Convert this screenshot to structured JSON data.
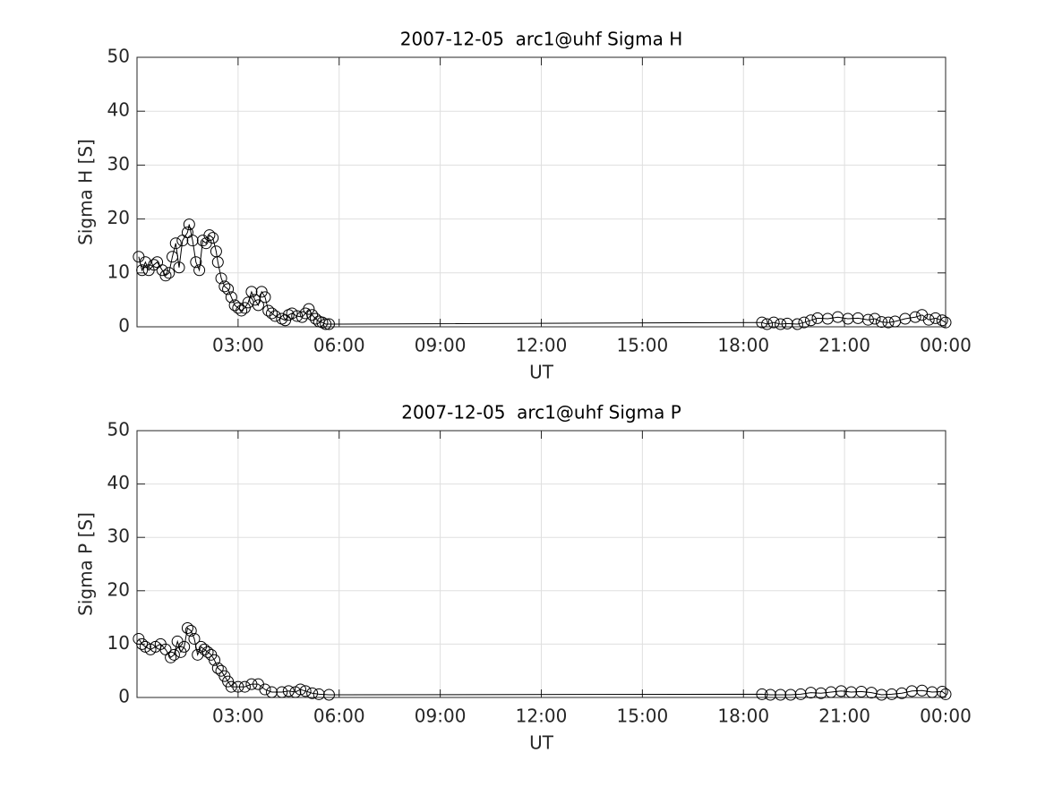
{
  "chart_data": [
    {
      "type": "line",
      "title": "2007-12-05  arc1@uhf Sigma H",
      "xlabel": "UT",
      "ylabel": "Sigma H [S]",
      "xlim": [
        0,
        24
      ],
      "ylim": [
        0,
        50
      ],
      "grid": true,
      "color": "#000000",
      "xticks": [
        {
          "value": 3,
          "label": "03:00"
        },
        {
          "value": 6,
          "label": "06:00"
        },
        {
          "value": 9,
          "label": "09:00"
        },
        {
          "value": 12,
          "label": "12:00"
        },
        {
          "value": 15,
          "label": "15:00"
        },
        {
          "value": 18,
          "label": "18:00"
        },
        {
          "value": 21,
          "label": "21:00"
        },
        {
          "value": 24,
          "label": "00:00"
        }
      ],
      "yticks": [
        0,
        10,
        20,
        30,
        40,
        50
      ],
      "x": [
        0.05,
        0.15,
        0.25,
        0.35,
        0.5,
        0.6,
        0.75,
        0.85,
        0.95,
        1.05,
        1.15,
        1.25,
        1.35,
        1.5,
        1.55,
        1.65,
        1.75,
        1.85,
        1.95,
        2.05,
        2.15,
        2.25,
        2.35,
        2.4,
        2.5,
        2.6,
        2.7,
        2.8,
        2.9,
        3.0,
        3.1,
        3.2,
        3.3,
        3.4,
        3.5,
        3.6,
        3.7,
        3.8,
        3.9,
        4.0,
        4.1,
        4.3,
        4.4,
        4.5,
        4.6,
        4.75,
        4.9,
        5.0,
        5.1,
        5.2,
        5.3,
        5.4,
        5.5,
        5.6,
        5.7,
        18.55,
        18.7,
        18.9,
        19.1,
        19.3,
        19.6,
        19.8,
        20.0,
        20.2,
        20.5,
        20.8,
        21.1,
        21.4,
        21.7,
        21.9,
        22.1,
        22.3,
        22.5,
        22.8,
        23.1,
        23.3,
        23.5,
        23.7,
        23.9,
        24.0
      ],
      "values": [
        13,
        10.5,
        12,
        10.5,
        11.5,
        12,
        10.5,
        9.5,
        10,
        13,
        15.5,
        11,
        16,
        17.5,
        19,
        16,
        12,
        10.5,
        16,
        15.5,
        17,
        16.5,
        14,
        12,
        9,
        7.5,
        7,
        5.5,
        4,
        3.5,
        3,
        3.5,
        4.5,
        6.5,
        5,
        4,
        6.5,
        5.5,
        3,
        2.5,
        2,
        1.5,
        1.2,
        2.2,
        2.5,
        2,
        1.8,
        2.5,
        3.3,
        2.2,
        1.5,
        1,
        0.8,
        0.5,
        0.5,
        0.8,
        0.5,
        0.8,
        0.5,
        0.6,
        0.5,
        0.8,
        1.2,
        1.6,
        1.5,
        1.8,
        1.5,
        1.6,
        1.3,
        1.5,
        0.9,
        0.8,
        1,
        1.5,
        1.8,
        2.2,
        1.3,
        1.6,
        1.2,
        0.8
      ]
    },
    {
      "type": "line",
      "title": "2007-12-05  arc1@uhf Sigma P",
      "xlabel": "UT",
      "ylabel": "Sigma P [S]",
      "xlim": [
        0,
        24
      ],
      "ylim": [
        0,
        50
      ],
      "grid": true,
      "color": "#000000",
      "xticks": [
        {
          "value": 3,
          "label": "03:00"
        },
        {
          "value": 6,
          "label": "06:00"
        },
        {
          "value": 9,
          "label": "09:00"
        },
        {
          "value": 12,
          "label": "12:00"
        },
        {
          "value": 15,
          "label": "15:00"
        },
        {
          "value": 18,
          "label": "18:00"
        },
        {
          "value": 21,
          "label": "21:00"
        },
        {
          "value": 24,
          "label": "00:00"
        }
      ],
      "yticks": [
        0,
        10,
        20,
        30,
        40,
        50
      ],
      "x": [
        0.05,
        0.15,
        0.25,
        0.4,
        0.55,
        0.7,
        0.85,
        1.0,
        1.1,
        1.2,
        1.3,
        1.4,
        1.5,
        1.6,
        1.7,
        1.8,
        1.9,
        2.0,
        2.1,
        2.2,
        2.3,
        2.4,
        2.5,
        2.6,
        2.7,
        2.8,
        3.0,
        3.2,
        3.4,
        3.6,
        3.8,
        4.0,
        4.3,
        4.5,
        4.7,
        4.85,
        5.0,
        5.2,
        5.4,
        5.7,
        18.55,
        18.8,
        19.1,
        19.4,
        19.7,
        20.0,
        20.3,
        20.6,
        20.9,
        21.2,
        21.5,
        21.8,
        22.1,
        22.4,
        22.7,
        23.0,
        23.3,
        23.6,
        23.9,
        24.0
      ],
      "values": [
        11,
        10,
        9.5,
        9,
        9.5,
        10,
        9,
        7.5,
        8,
        10.5,
        8.5,
        9.5,
        13,
        12.5,
        11,
        8,
        9.5,
        9,
        8.5,
        8,
        7,
        5.5,
        5,
        4,
        3,
        2,
        2,
        2,
        2.5,
        2.5,
        1.5,
        1,
        1,
        1.2,
        1,
        1.5,
        1.2,
        0.8,
        0.6,
        0.5,
        0.6,
        0.5,
        0.5,
        0.5,
        0.6,
        0.9,
        0.8,
        1,
        1.2,
        1,
        1.1,
        0.9,
        0.5,
        0.6,
        0.8,
        1.2,
        1.3,
        1,
        1.1,
        0.6
      ]
    }
  ]
}
